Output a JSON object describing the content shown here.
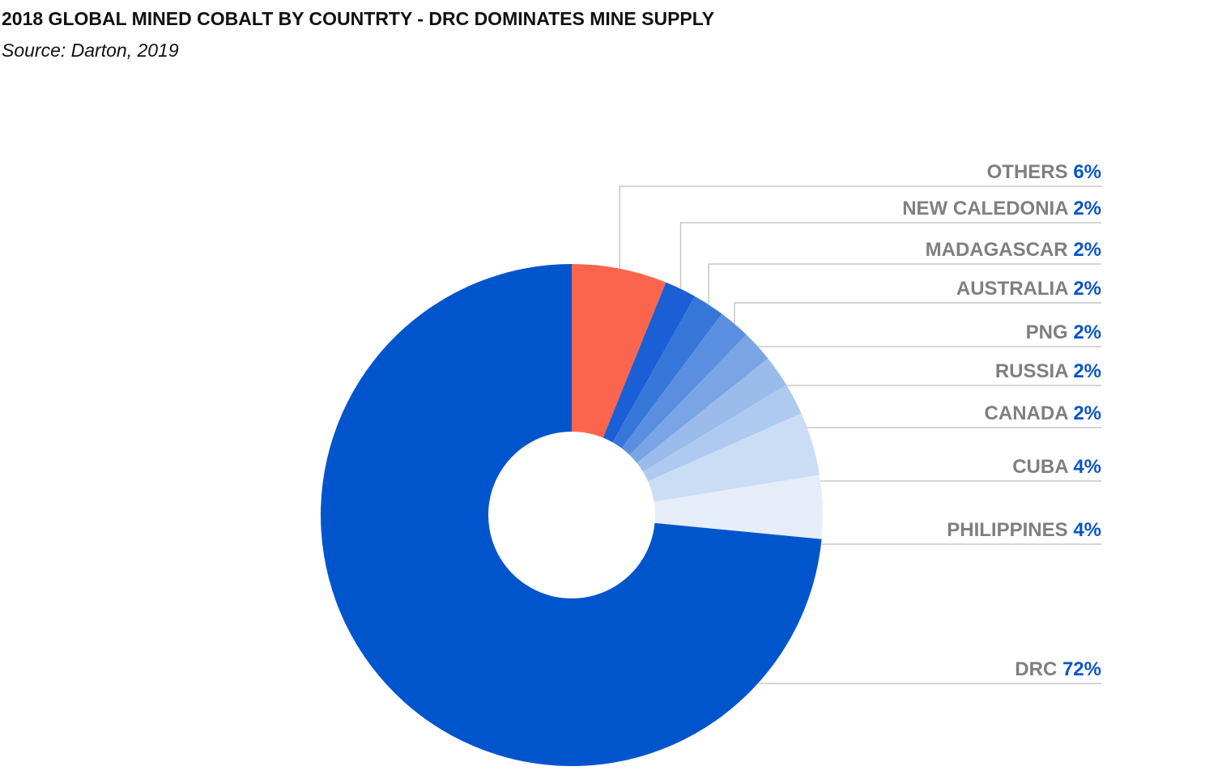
{
  "chart_data": {
    "type": "donut",
    "title": "2018 GLOBAL MINED COBALT BY COUNTRTY - DRC DOMINATES MINE SUPPLY",
    "subtitle": "Source: Darton, 2019",
    "categories": [
      "OTHERS",
      "NEW CALEDONIA",
      "MADAGASCAR",
      "AUSTRALIA",
      "PNG",
      "RUSSIA",
      "CANADA",
      "CUBA",
      "PHILIPPINES",
      "DRC"
    ],
    "values": [
      6,
      2,
      2,
      2,
      2,
      2,
      2,
      4,
      4,
      72
    ],
    "value_labels": [
      "6%",
      "2%",
      "2%",
      "2%",
      "2%",
      "2%",
      "2%",
      "4%",
      "4%",
      "72%"
    ],
    "colors": [
      "#fb654d",
      "#1a5fd6",
      "#3577d9",
      "#5a8edf",
      "#7aa5e5",
      "#9bbceb",
      "#aecaf0",
      "#cbdcf5",
      "#e5edf9",
      "#0055cc"
    ]
  }
}
